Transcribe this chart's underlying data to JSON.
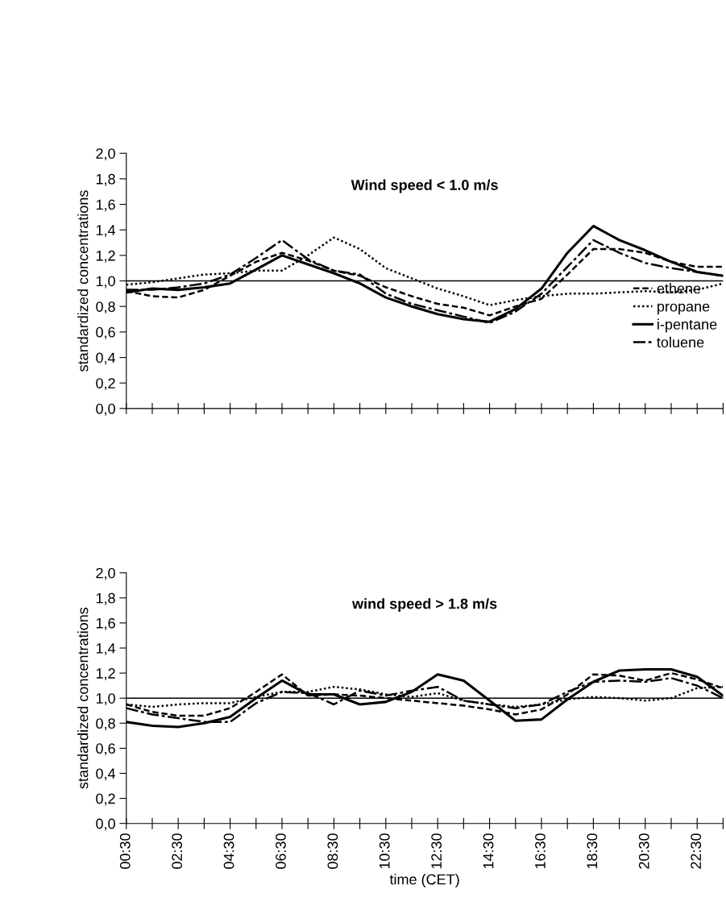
{
  "chart_data": [
    {
      "type": "line",
      "title": "Wind speed < 1.0 m/s",
      "ylabel": "standardized concentrations",
      "x": [
        0.5,
        1.5,
        2.5,
        3.5,
        4.5,
        5.5,
        6.5,
        7.5,
        8.5,
        9.5,
        10.5,
        11.5,
        12.5,
        13.5,
        14.5,
        15.5,
        16.5,
        17.5,
        18.5,
        19.5,
        20.5,
        21.5,
        22.5,
        23.5
      ],
      "series": [
        {
          "name": "ethene",
          "color": "#000000",
          "line_style": "dashed",
          "values": [
            0.92,
            0.88,
            0.87,
            0.93,
            1.04,
            1.15,
            1.22,
            1.16,
            1.08,
            1.04,
            0.95,
            0.88,
            0.82,
            0.79,
            0.73,
            0.8,
            0.86,
            1.05,
            1.25,
            1.25,
            1.22,
            1.15,
            1.11,
            1.11
          ]
        },
        {
          "name": "propane",
          "color": "#000000",
          "line_style": "dotted",
          "values": [
            0.97,
            0.99,
            1.02,
            1.05,
            1.06,
            1.08,
            1.08,
            1.2,
            1.34,
            1.25,
            1.1,
            1.02,
            0.94,
            0.88,
            0.81,
            0.85,
            0.88,
            0.9,
            0.9,
            0.91,
            0.92,
            0.91,
            0.93,
            0.98
          ]
        },
        {
          "name": "i-pentane",
          "color": "#000000",
          "line_style": "solid",
          "values": [
            0.91,
            0.94,
            0.93,
            0.95,
            0.98,
            1.09,
            1.2,
            1.13,
            1.06,
            0.98,
            0.87,
            0.8,
            0.74,
            0.7,
            0.68,
            0.78,
            0.94,
            1.22,
            1.43,
            1.32,
            1.24,
            1.15,
            1.07,
            1.04
          ]
        },
        {
          "name": "toluene",
          "color": "#000000",
          "line_style": "dashdot",
          "values": [
            0.93,
            0.93,
            0.95,
            0.98,
            1.05,
            1.18,
            1.32,
            1.17,
            1.08,
            1.05,
            0.9,
            0.82,
            0.77,
            0.72,
            0.67,
            0.76,
            0.9,
            1.11,
            1.32,
            1.22,
            1.14,
            1.1,
            1.07,
            1.04
          ]
        }
      ],
      "xlim": [
        0.5,
        23.5
      ],
      "xticks": [
        {
          "value": 0.5,
          "label": null
        },
        {
          "value": 1.5,
          "label": null
        },
        {
          "value": 2.5,
          "label": null
        },
        {
          "value": 3.5,
          "label": null
        },
        {
          "value": 4.5,
          "label": null
        },
        {
          "value": 5.5,
          "label": null
        },
        {
          "value": 6.5,
          "label": null
        },
        {
          "value": 7.5,
          "label": null
        },
        {
          "value": 8.5,
          "label": null
        },
        {
          "value": 9.5,
          "label": null
        },
        {
          "value": 10.5,
          "label": null
        },
        {
          "value": 11.5,
          "label": null
        },
        {
          "value": 12.5,
          "label": null
        },
        {
          "value": 13.5,
          "label": null
        },
        {
          "value": 14.5,
          "label": null
        },
        {
          "value": 15.5,
          "label": null
        },
        {
          "value": 16.5,
          "label": null
        },
        {
          "value": 17.5,
          "label": null
        },
        {
          "value": 18.5,
          "label": null
        },
        {
          "value": 19.5,
          "label": null
        },
        {
          "value": 20.5,
          "label": null
        },
        {
          "value": 21.5,
          "label": null
        },
        {
          "value": 22.5,
          "label": null
        },
        {
          "value": 23.5,
          "label": null
        }
      ],
      "ylim": [
        0,
        2
      ],
      "yticks": [
        {
          "value": 0,
          "label": "0,0"
        },
        {
          "value": 0.2,
          "label": "0,2"
        },
        {
          "value": 0.4,
          "label": "0,4"
        },
        {
          "value": 0.6,
          "label": "0,6"
        },
        {
          "value": 0.8,
          "label": "0,8"
        },
        {
          "value": 1.0,
          "label": "1,0"
        },
        {
          "value": 1.2,
          "label": "1,2"
        },
        {
          "value": 1.4,
          "label": "1,4"
        },
        {
          "value": 1.6,
          "label": "1,6"
        },
        {
          "value": 1.8,
          "label": "1,8"
        },
        {
          "value": 2.0,
          "label": "2,0"
        }
      ],
      "tick_labels": "y",
      "ref_lines": [
        {
          "axis": "y",
          "value": 1.0,
          "color": "#000000"
        }
      ],
      "legend": "right",
      "grid": false,
      "marker": "none"
    },
    {
      "type": "line",
      "title": "wind speed > 1.8 m/s",
      "ylabel": "standardized concentrations",
      "xlabel": "time (CET)",
      "x": [
        0.5,
        1.5,
        2.5,
        3.5,
        4.5,
        5.5,
        6.5,
        7.5,
        8.5,
        9.5,
        10.5,
        11.5,
        12.5,
        13.5,
        14.5,
        15.5,
        16.5,
        17.5,
        18.5,
        19.5,
        20.5,
        21.5,
        22.5,
        23.5
      ],
      "series": [
        {
          "color": "#000000",
          "line_style": "dashed",
          "values": [
            0.95,
            0.89,
            0.86,
            0.86,
            0.92,
            1.05,
            1.19,
            1.02,
            1.03,
            1.02,
            1.0,
            0.98,
            0.96,
            0.94,
            0.91,
            0.87,
            0.91,
            1.03,
            1.19,
            1.18,
            1.14,
            1.2,
            1.15,
            1.08
          ]
        },
        {
          "color": "#000000",
          "line_style": "dotted",
          "values": [
            0.95,
            0.93,
            0.95,
            0.96,
            0.96,
            1.01,
            1.05,
            1.05,
            1.09,
            1.07,
            1.03,
            1.01,
            1.04,
            0.98,
            0.95,
            0.93,
            0.95,
            0.99,
            1.01,
            1.0,
            0.98,
            1.0,
            1.08,
            1.09
          ]
        },
        {
          "color": "#000000",
          "line_style": "solid",
          "values": [
            0.81,
            0.78,
            0.77,
            0.8,
            0.85,
            1.0,
            1.14,
            1.03,
            1.03,
            0.95,
            0.97,
            1.05,
            1.19,
            1.14,
            0.98,
            0.82,
            0.83,
            0.99,
            1.13,
            1.22,
            1.23,
            1.23,
            1.17,
            1.02
          ]
        },
        {
          "color": "#000000",
          "line_style": "dashdot",
          "values": [
            0.92,
            0.87,
            0.84,
            0.81,
            0.81,
            0.96,
            1.05,
            1.04,
            0.95,
            1.06,
            1.02,
            1.06,
            1.09,
            0.98,
            0.95,
            0.92,
            0.95,
            1.05,
            1.13,
            1.14,
            1.13,
            1.16,
            1.1,
            1.0
          ]
        }
      ],
      "xlim": [
        0.5,
        23.5
      ],
      "xticks": [
        {
          "value": 0.5,
          "label": "00:30"
        },
        {
          "value": 1.5,
          "label": null
        },
        {
          "value": 2.5,
          "label": "02:30"
        },
        {
          "value": 3.5,
          "label": null
        },
        {
          "value": 4.5,
          "label": "04:30"
        },
        {
          "value": 5.5,
          "label": null
        },
        {
          "value": 6.5,
          "label": "06:30"
        },
        {
          "value": 7.5,
          "label": null
        },
        {
          "value": 8.5,
          "label": "08:30"
        },
        {
          "value": 9.5,
          "label": null
        },
        {
          "value": 10.5,
          "label": "10:30"
        },
        {
          "value": 11.5,
          "label": null
        },
        {
          "value": 12.5,
          "label": "12:30"
        },
        {
          "value": 13.5,
          "label": null
        },
        {
          "value": 14.5,
          "label": "14:30"
        },
        {
          "value": 15.5,
          "label": null
        },
        {
          "value": 16.5,
          "label": "16:30"
        },
        {
          "value": 17.5,
          "label": null
        },
        {
          "value": 18.5,
          "label": "18:30"
        },
        {
          "value": 19.5,
          "label": null
        },
        {
          "value": 20.5,
          "label": "20:30"
        },
        {
          "value": 21.5,
          "label": null
        },
        {
          "value": 22.5,
          "label": "22:30"
        },
        {
          "value": 23.5,
          "label": null
        }
      ],
      "ylim": [
        0,
        2
      ],
      "yticks": [
        {
          "value": 0,
          "label": "0,0"
        },
        {
          "value": 0.2,
          "label": "0,2"
        },
        {
          "value": 0.4,
          "label": "0,4"
        },
        {
          "value": 0.6,
          "label": "0,6"
        },
        {
          "value": 0.8,
          "label": "0,8"
        },
        {
          "value": 1.0,
          "label": "1,0"
        },
        {
          "value": 1.2,
          "label": "1,2"
        },
        {
          "value": 1.4,
          "label": "1,4"
        },
        {
          "value": 1.6,
          "label": "1,6"
        },
        {
          "value": 1.8,
          "label": "1,8"
        },
        {
          "value": 2.0,
          "label": "2,0"
        }
      ],
      "ref_lines": [
        {
          "axis": "y",
          "value": 1.0,
          "color": "#000000"
        }
      ],
      "grid": false,
      "marker": "none"
    }
  ]
}
